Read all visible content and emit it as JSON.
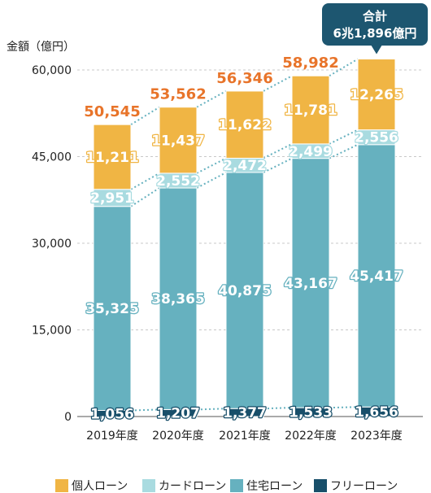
{
  "colors": {
    "personal": "#f0b544",
    "card": "#a9dbe0",
    "housing": "#66b1bf",
    "free": "#184f6a",
    "total": "#e8742a",
    "grid": "#c8c8c8",
    "connector": "#66b1bf",
    "callout": "#1d5670"
  },
  "chart_data": {
    "type": "bar",
    "stacked": true,
    "ylabel": "金額（億円）",
    "ylim": [
      0,
      60000
    ],
    "yticks": [
      "0",
      "15,000",
      "30,000",
      "45,000",
      "60,000"
    ],
    "ytick_values": [
      0,
      15000,
      30000,
      45000,
      60000
    ],
    "grid": true,
    "categories": [
      "2019年度",
      "2020年度",
      "2021年度",
      "2022年度",
      "2023年度"
    ],
    "series": [
      {
        "name": "フリーローン",
        "key": "free",
        "values": [
          1056,
          1207,
          1377,
          1533,
          1656
        ],
        "labels": [
          "1,056",
          "1,207",
          "1,377",
          "1,533",
          "1,656"
        ]
      },
      {
        "name": "住宅ローン",
        "key": "housing",
        "values": [
          35325,
          38365,
          40875,
          43167,
          45417
        ],
        "labels": [
          "35,325",
          "38,365",
          "40,875",
          "43,167",
          "45,417"
        ]
      },
      {
        "name": "カードローン",
        "key": "card",
        "values": [
          2951,
          2552,
          2472,
          2499,
          2556
        ],
        "labels": [
          "2,951",
          "2,552",
          "2,472",
          "2,499",
          "2,556"
        ]
      },
      {
        "name": "個人ローン",
        "key": "personal",
        "values": [
          11211,
          11437,
          11622,
          11781,
          12265
        ],
        "labels": [
          "11,211",
          "11,437",
          "11,622",
          "11,781",
          "12,265"
        ]
      }
    ],
    "totals": [
      50545,
      53562,
      56346,
      58982,
      61896
    ],
    "total_labels": [
      "50,545",
      "53,562",
      "56,346",
      "58,982",
      ""
    ],
    "callout": {
      "line1": "合計",
      "line2": "6兆1,896億円"
    },
    "legend": [
      "個人ローン",
      "カードローン",
      "住宅ローン",
      "フリーローン"
    ],
    "legend_position": "bottom"
  }
}
